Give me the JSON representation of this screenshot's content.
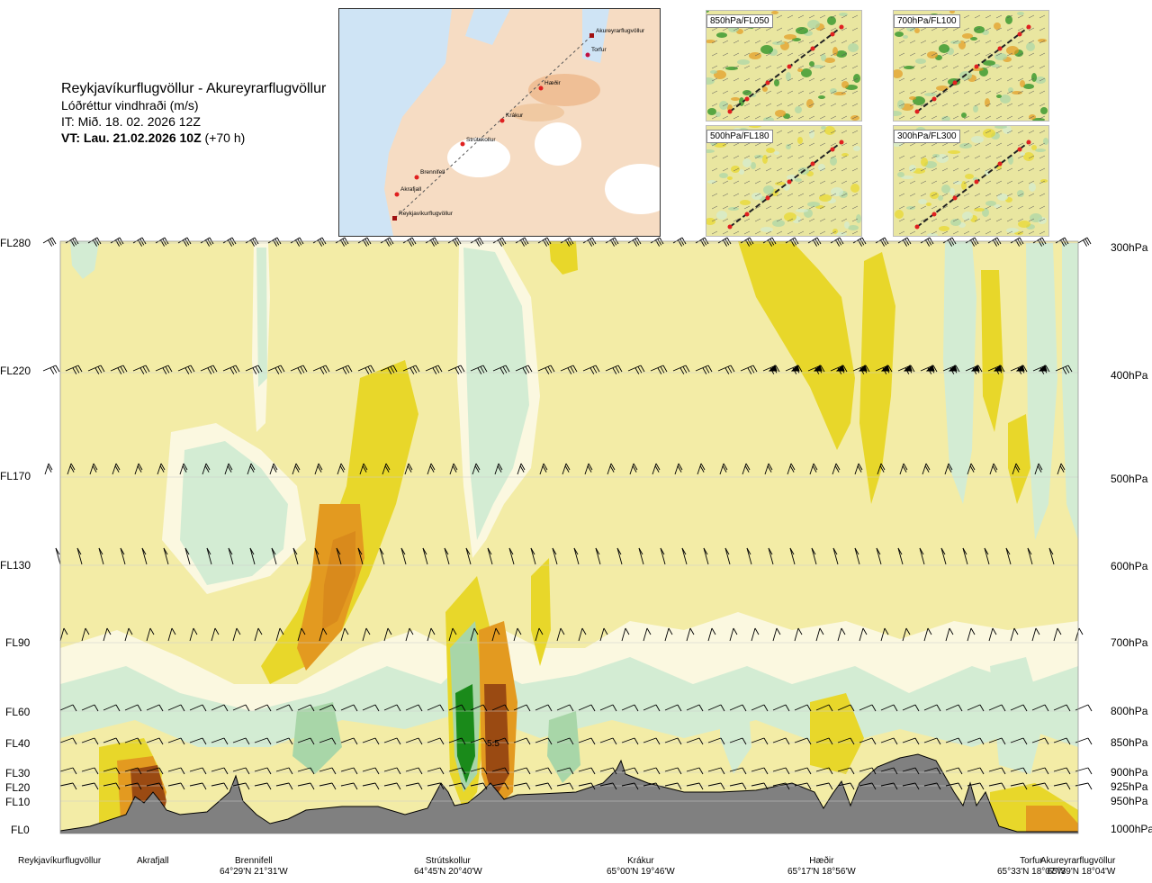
{
  "header": {
    "route": "Reykjavíkurflugvöllur - Akureyrarflugvöllur",
    "product": "Lóðréttur vindhraði (m/s)",
    "issue_time": "IT: Mið. 18. 02. 2026 12Z",
    "valid_time_bold": "VT: Lau. 21.02.2026 10Z",
    "valid_time_offset": "(+70 h)"
  },
  "route_map": {
    "waypoints": [
      "Akureyrarflugvöllur",
      "Torfur",
      "Hæðir",
      "Krákur",
      "Strútskollur",
      "Brennifell",
      "Akrafjall",
      "Reykjavíkurflugvöllur"
    ]
  },
  "mini_maps": [
    {
      "label": "850hPa/FL050"
    },
    {
      "label": "700hPa/FL100"
    },
    {
      "label": "500hPa/FL180"
    },
    {
      "label": "300hPa/FL300"
    }
  ],
  "chart_data": {
    "type": "heatmap",
    "title": "Lóðréttur vindhraði (m/s)",
    "x_axis_locations": [
      {
        "name": "Reykjavíkurflugvöllur",
        "coord": ""
      },
      {
        "name": "Akrafjall",
        "coord": ""
      },
      {
        "name": "Brennifell",
        "coord": "64°29'N 21°31'W"
      },
      {
        "name": "Strútskollur",
        "coord": "64°45'N 20°40'W"
      },
      {
        "name": "Krákur",
        "coord": "65°00'N 19°46'W"
      },
      {
        "name": "Hæðir",
        "coord": "65°17'N 18°56'W"
      },
      {
        "name": "Torfur",
        "coord": "65°33'N 18°07'W"
      },
      {
        "name": "Akureyrarflugvöllur",
        "coord": "65°39'N 18°04'W"
      }
    ],
    "left_axis_levels": [
      "FL280",
      "FL220",
      "FL170",
      "FL130",
      "FL90",
      "FL60",
      "FL40",
      "FL30",
      "FL20",
      "FL10",
      "FL0"
    ],
    "right_axis_levels": [
      "300hPa",
      "400hPa",
      "500hPa",
      "600hPa",
      "700hPa",
      "800hPa",
      "850hPa",
      "900hPa",
      "925hPa",
      "950hPa",
      "1000hPa"
    ],
    "annotation": "5.5",
    "terrain": "grey terrain profile along route",
    "colors": {
      "background": "#f3eca6",
      "light_green": "#d3ecd3",
      "mid_green": "#a8d6a8",
      "dark_green": "#1a8a1a",
      "yellow": "#e8d72a",
      "orange": "#e39a20",
      "brown": "#9a4a12",
      "terrain": "#808080"
    }
  }
}
